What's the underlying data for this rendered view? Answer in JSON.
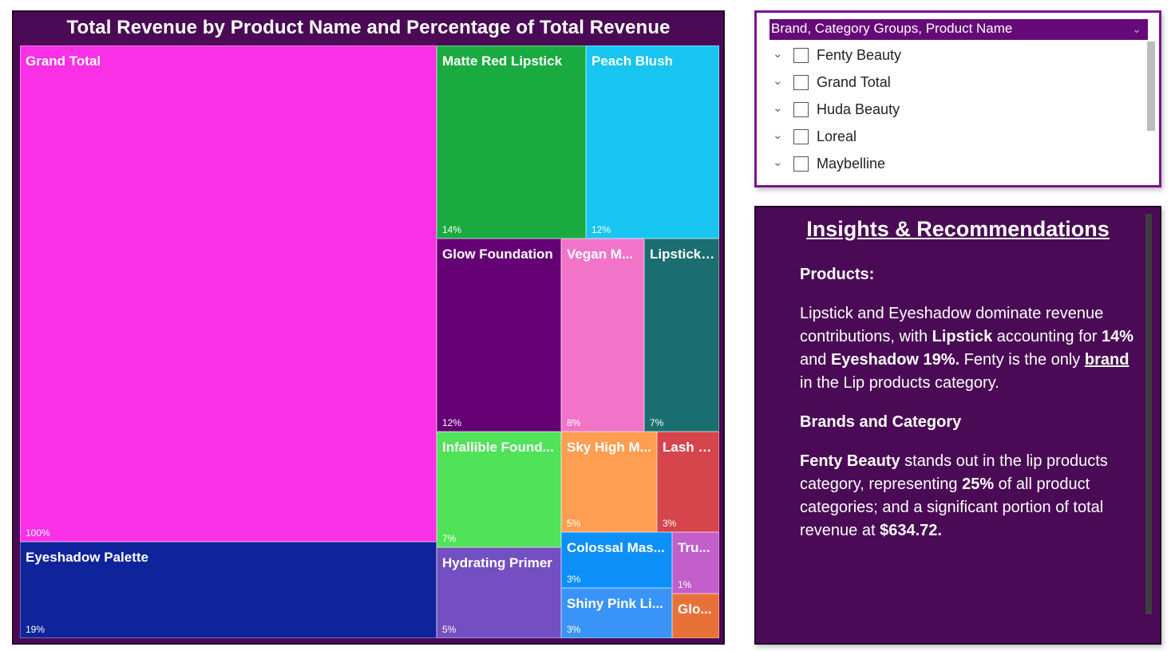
{
  "chart_data": {
    "type": "treemap",
    "title": "Total Revenue by Product Name and Percentage of Total Revenue",
    "tiles": [
      {
        "name": "Grand Total",
        "label": "Grand Total",
        "percent": "100%",
        "color": "#fa30e6"
      },
      {
        "name": "Eyeshadow Palette",
        "label": "Eyeshadow Palette",
        "percent": "19%",
        "color": "#0f249b"
      },
      {
        "name": "Matte Red Lipstick",
        "label": "Matte Red Lipstick",
        "percent": "14%",
        "color": "#1aab40"
      },
      {
        "name": "Peach Blush",
        "label": "Peach Blush",
        "percent": "12%",
        "color": "#18c5f0"
      },
      {
        "name": "Glow Foundation",
        "label": "Glow Foundation",
        "percent": "12%",
        "color": "#640073"
      },
      {
        "name": "Vegan M...",
        "label": "Vegan M...",
        "percent": "8%",
        "color": "#f174c8"
      },
      {
        "name": "Lipstick ...",
        "label": "Lipstick ...",
        "percent": "7%",
        "color": "#1a6e70"
      },
      {
        "name": "Infallible Found...",
        "label": "Infallible Found...",
        "percent": "7%",
        "color": "#50e359"
      },
      {
        "name": "Sky High M...",
        "label": "Sky High M...",
        "percent": "5%",
        "color": "#fd9e52"
      },
      {
        "name": "Lash S...",
        "label": "Lash S...",
        "percent": "3%",
        "color": "#d6454b"
      },
      {
        "name": "Hydrating Primer",
        "label": "Hydrating Primer",
        "percent": "5%",
        "color": "#744fc1"
      },
      {
        "name": "Colossal Mas...",
        "label": "Colossal Mas...",
        "percent": "3%",
        "color": "#0c90f8"
      },
      {
        "name": "Tru...",
        "label": "Tru...",
        "percent": "1%",
        "color": "#c25fca"
      },
      {
        "name": "Shiny Pink Li...",
        "label": "Shiny Pink Li...",
        "percent": "3%",
        "color": "#3a94f7"
      },
      {
        "name": "Glo...",
        "label": "Glo...",
        "percent": "",
        "color": "#e8713a"
      }
    ]
  },
  "slicer": {
    "header": "Brand, Category Groups, Product Name",
    "items": [
      "Fenty Beauty",
      "Grand Total",
      "Huda Beauty",
      "Loreal",
      "Maybelline"
    ]
  },
  "insights": {
    "title": "Insights & Recommendations",
    "products_heading": "Products:",
    "p1_a": "Lipstick and Eyeshadow dominate revenue contributions, with ",
    "p1_b": "Lipstick",
    "p1_c": " accounting for ",
    "p1_d": "14%",
    "p1_e": " and ",
    "p1_f": "Eyeshadow 19%.",
    "p1_g": " Fenty is the only ",
    "p1_h": "brand",
    "p1_i": " in the Lip products category.",
    "brands_heading": "Brands and Category",
    "p2_a": "Fenty Beauty",
    "p2_b": " stands out in the lip products category, representing ",
    "p2_c": "25%",
    "p2_d": " of all product categories; and a significant portion of total revenue at ",
    "p2_e": "$634.72."
  }
}
